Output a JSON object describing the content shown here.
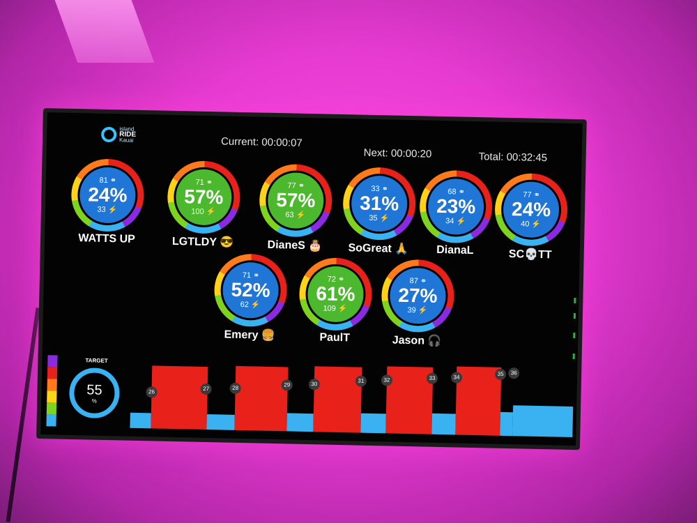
{
  "header": {
    "logo_small": "island",
    "logo_main": "RIDE",
    "logo_sub": "Kauai",
    "current": "Current: 00:00:07",
    "next": "Next: 00:00:20",
    "total": "Total: 00:32:45"
  },
  "riders": [
    {
      "name": "WATTS UP",
      "cadence": "81 ⚭",
      "percent": "24%",
      "power": "33 ⚡",
      "color": "blue"
    },
    {
      "name": "LGTLDY 😎",
      "cadence": "71 ⚭",
      "percent": "57%",
      "power": "100 ⚡",
      "color": "green"
    },
    {
      "name": "DianeS 🎂",
      "cadence": "77 ⚭",
      "percent": "57%",
      "power": "63 ⚡",
      "color": "green"
    },
    {
      "name": "SoGreat 🙏",
      "cadence": "33 ⚭",
      "percent": "31%",
      "power": "35 ⚡",
      "color": "blue"
    },
    {
      "name": "DianaL",
      "cadence": "68 ⚭",
      "percent": "23%",
      "power": "34 ⚡",
      "color": "blue"
    },
    {
      "name": "SC💀TT",
      "cadence": "77 ⚭",
      "percent": "24%",
      "power": "40 ⚡",
      "color": "blue"
    },
    {
      "name": "Emery 🍔",
      "cadence": "71 ⚭",
      "percent": "52%",
      "power": "62 ⚡",
      "color": "blue"
    },
    {
      "name": "PaulT",
      "cadence": "72 ⚭",
      "percent": "61%",
      "power": "109 ⚡",
      "color": "green"
    },
    {
      "name": "Jason 🎧",
      "cadence": "87 ⚭",
      "percent": "27%",
      "power": "39 ⚡",
      "color": "blue"
    }
  ],
  "target": {
    "label": "TARGET",
    "value": "55",
    "unit": "%"
  },
  "segment_labels": [
    "26",
    "27",
    "28",
    "29",
    "30",
    "31",
    "32",
    "33",
    "34",
    "35",
    "36"
  ],
  "colors": {
    "blue": "#1f76d6",
    "green": "#4cb82d",
    "bar_high": "#e8211b",
    "bar_low": "#3ab1f0"
  }
}
